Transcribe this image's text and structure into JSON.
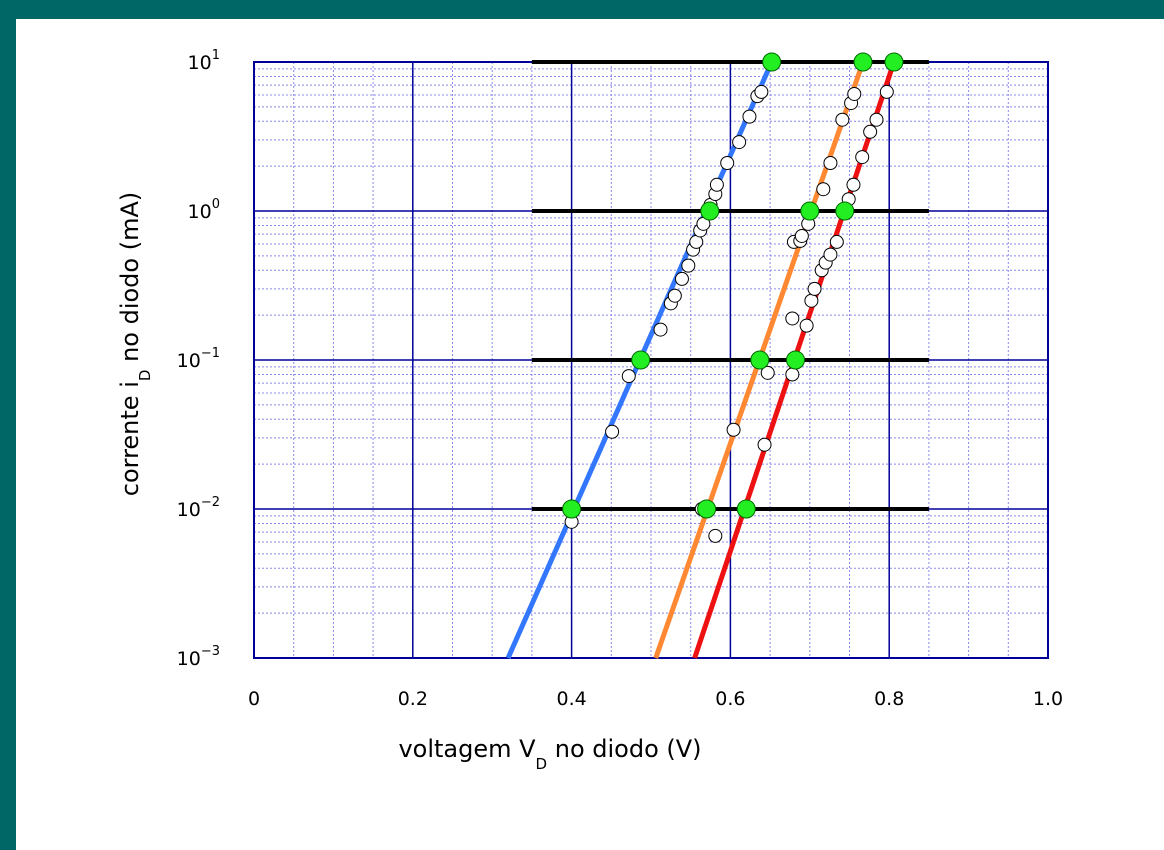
{
  "chart_data": {
    "type": "scatter",
    "xlabel": {
      "pre": "voltagem V",
      "sub": "D",
      "post": " no diodo (V)"
    },
    "ylabel": {
      "pre": "corrente i",
      "sub": "D",
      "post": "  no diodo (mA)"
    },
    "xlim": [
      0,
      1.0
    ],
    "ylim": [
      0.001,
      10
    ],
    "yscale": "log",
    "grid": true,
    "x_ticks": [
      {
        "value": 0,
        "label": "0"
      },
      {
        "value": 0.2,
        "label": "0.2"
      },
      {
        "value": 0.4,
        "label": "0.4"
      },
      {
        "value": 0.6,
        "label": "0.6"
      },
      {
        "value": 0.8,
        "label": "0.8"
      },
      {
        "value": 1.0,
        "label": "1.0"
      }
    ],
    "y_ticks": [
      {
        "value": 10,
        "base": "10",
        "exp": "1"
      },
      {
        "value": 1,
        "base": "10",
        "exp": "0"
      },
      {
        "value": 0.1,
        "base": "10",
        "exp": "−1"
      },
      {
        "value": 0.01,
        "base": "10",
        "exp": "−2"
      },
      {
        "value": 0.001,
        "base": "10",
        "exp": "−3"
      }
    ],
    "reference_lines": [
      {
        "y": 10,
        "x_range": [
          0.35,
          0.85
        ]
      },
      {
        "y": 1,
        "x_range": [
          0.35,
          0.85
        ]
      },
      {
        "y": 0.1,
        "x_range": [
          0.35,
          0.85
        ]
      },
      {
        "y": 0.01,
        "x_range": [
          0.35,
          0.85
        ]
      }
    ],
    "series": [
      {
        "color": "#3377ff",
        "fit_line": [
          [
            0.32,
            0.001
          ],
          [
            0.652,
            10
          ]
        ],
        "fit_points": [
          [
            0.4,
            0.01
          ],
          [
            0.487,
            0.1
          ],
          [
            0.574,
            1
          ],
          [
            0.652,
            10
          ]
        ],
        "measured": [
          [
            0.4,
            0.0082
          ],
          [
            0.472,
            0.078
          ],
          [
            0.451,
            0.033
          ],
          [
            0.512,
            0.16
          ],
          [
            0.525,
            0.24
          ],
          [
            0.53,
            0.27
          ],
          [
            0.539,
            0.35
          ],
          [
            0.547,
            0.43
          ],
          [
            0.553,
            0.55
          ],
          [
            0.557,
            0.62
          ],
          [
            0.562,
            0.74
          ],
          [
            0.566,
            0.82
          ],
          [
            0.575,
            1.1
          ],
          [
            0.581,
            1.3
          ],
          [
            0.583,
            1.5
          ],
          [
            0.596,
            2.1
          ],
          [
            0.611,
            2.9
          ],
          [
            0.624,
            4.3
          ],
          [
            0.634,
            5.9
          ],
          [
            0.639,
            6.3
          ]
        ]
      },
      {
        "color": "#ff8833",
        "fit_line": [
          [
            0.506,
            0.001
          ],
          [
            0.767,
            10
          ]
        ],
        "fit_points": [
          [
            0.57,
            0.01
          ],
          [
            0.637,
            0.1
          ],
          [
            0.7,
            1
          ],
          [
            0.767,
            10
          ]
        ],
        "measured": [
          [
            0.564,
            0.01
          ],
          [
            0.581,
            0.0066
          ],
          [
            0.604,
            0.034
          ],
          [
            0.647,
            0.082
          ],
          [
            0.678,
            0.19
          ],
          [
            0.68,
            0.62
          ],
          [
            0.688,
            0.63
          ],
          [
            0.69,
            0.68
          ],
          [
            0.698,
            0.82
          ],
          [
            0.717,
            1.4
          ],
          [
            0.726,
            2.1
          ],
          [
            0.741,
            4.1
          ],
          [
            0.752,
            5.3
          ],
          [
            0.756,
            6.1
          ]
        ]
      },
      {
        "color": "#ee1111",
        "fit_line": [
          [
            0.555,
            0.001
          ],
          [
            0.806,
            10
          ]
        ],
        "fit_points": [
          [
            0.62,
            0.01
          ],
          [
            0.682,
            0.1
          ],
          [
            0.744,
            1
          ],
          [
            0.806,
            10
          ]
        ],
        "measured": [
          [
            0.643,
            0.027
          ],
          [
            0.678,
            0.08
          ],
          [
            0.696,
            0.17
          ],
          [
            0.702,
            0.25
          ],
          [
            0.706,
            0.3
          ],
          [
            0.715,
            0.4
          ],
          [
            0.72,
            0.45
          ],
          [
            0.726,
            0.51
          ],
          [
            0.734,
            0.62
          ],
          [
            0.749,
            1.2
          ],
          [
            0.755,
            1.5
          ],
          [
            0.766,
            2.3
          ],
          [
            0.776,
            3.4
          ],
          [
            0.784,
            4.1
          ],
          [
            0.797,
            6.3
          ]
        ]
      }
    ]
  }
}
